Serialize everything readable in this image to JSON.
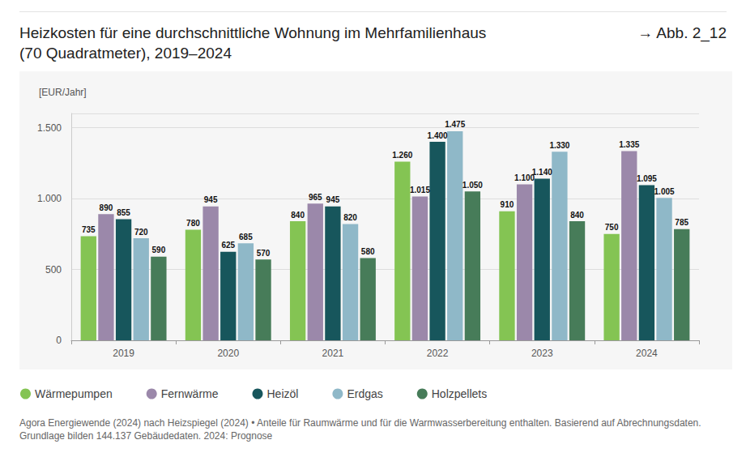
{
  "chart_data": {
    "type": "bar",
    "title": "Heizkosten für eine durchschnittliche Wohnung im Mehrfamilienhaus (70 Quadratmeter), 2019–2024",
    "figure_label": "→ Abb. 2_12",
    "y_label": "[EUR/Jahr]",
    "note": "Agora Energiewende (2024) nach Heizspiegel (2024) • Anteile für Raumwärme und für die Warmwasserbereitung enthalten. Basierend auf Abrechnungsdaten. Grundlage bilden 144.137 Gebäudedaten. 2024: Prognose",
    "categories": [
      "2019",
      "2020",
      "2021",
      "2022",
      "2023",
      "2024"
    ],
    "series": [
      {
        "name": "Wärmepumpen",
        "color": "#84c453",
        "values": [
          735,
          780,
          840,
          1260,
          910,
          750
        ],
        "value_labels": [
          "735",
          "780",
          "840",
          "1.260",
          "910",
          "750"
        ]
      },
      {
        "name": "Fernwärme",
        "color": "#9b88aa",
        "values": [
          890,
          945,
          965,
          1015,
          1100,
          1335
        ],
        "value_labels": [
          "890",
          "945",
          "965",
          "1.015",
          "1.100",
          "1.335"
        ]
      },
      {
        "name": "Heizöl",
        "color": "#17565c",
        "values": [
          855,
          625,
          945,
          1400,
          1140,
          1095
        ],
        "value_labels": [
          "855",
          "625",
          "945",
          "1.400",
          "1.140",
          "1.095"
        ]
      },
      {
        "name": "Erdgas",
        "color": "#8fb8c8",
        "values": [
          720,
          685,
          820,
          1475,
          1330,
          1005
        ],
        "value_labels": [
          "720",
          "685",
          "820",
          "1.475",
          "1.330",
          "1.005"
        ]
      },
      {
        "name": "Holzpellets",
        "color": "#477c59",
        "values": [
          590,
          570,
          580,
          1050,
          840,
          785
        ],
        "value_labels": [
          "590",
          "570",
          "580",
          "1.050",
          "840",
          "785"
        ]
      }
    ],
    "ylim": [
      0,
      1600
    ],
    "yticks": [
      0,
      500,
      {
        "value": 1000,
        "label": "1.000"
      },
      {
        "value": 1500,
        "label": "1.500"
      }
    ],
    "grid": true,
    "legend": "bottom",
    "data_labels": true
  }
}
